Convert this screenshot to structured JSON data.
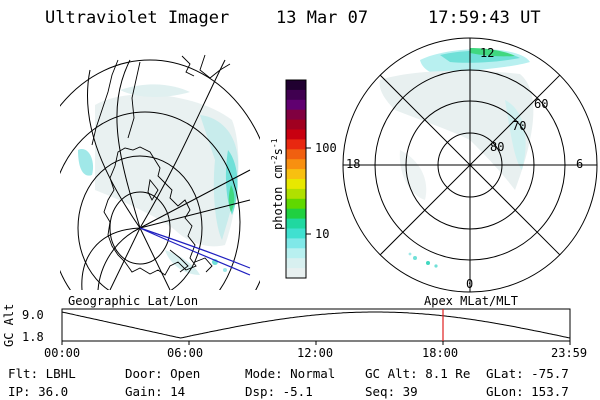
{
  "header": {
    "instrument": "Ultraviolet Imager",
    "date": "13 Mar 07",
    "time": "17:59:43 UT"
  },
  "colorbar": {
    "unit_label": "photon cm",
    "unit_exp1": "-2",
    "unit_s": "s",
    "unit_exp2": "-1",
    "ticks": [
      "100",
      "10"
    ],
    "colors": [
      "#200030",
      "#400050",
      "#600070",
      "#800040",
      "#a00020",
      "#c80010",
      "#e82810",
      "#f06010",
      "#f89010",
      "#f8c010",
      "#e8e800",
      "#b0e000",
      "#60d800",
      "#20d040",
      "#20d8a0",
      "#40e0d0",
      "#80e8e8",
      "#b8f0f0",
      "#d8f0f0",
      "#e8f0f0"
    ]
  },
  "polar_plot": {
    "lat_labels": [
      "60",
      "70",
      "80"
    ],
    "mlt_labels": {
      "top": "12",
      "left": "18",
      "right": "6",
      "bottom": "0"
    }
  },
  "map_labels": {
    "geographic": "Geographic Lat/Lon",
    "apex": "Apex MLat/MLT"
  },
  "altitude_plot": {
    "ylabel": "GC Alt",
    "yticks": [
      "9.0",
      "1.8"
    ],
    "xticks": [
      "00:00",
      "06:00",
      "12:00",
      "18:00",
      "23:59"
    ],
    "marker_color": "#e02020",
    "current_time_hours": 18.0
  },
  "info": {
    "flt": "Flt: LBHL",
    "door": "Door: Open",
    "mode": "Mode: Normal",
    "gcalt": "GC Alt: 8.1 Re",
    "glat": "GLat: -75.7",
    "ip": "IP: 36.0",
    "gain": "Gain: 14",
    "dsp": "Dsp:   -5.1",
    "seq": "Seq: 39",
    "glon": "GLon: 153.7"
  }
}
